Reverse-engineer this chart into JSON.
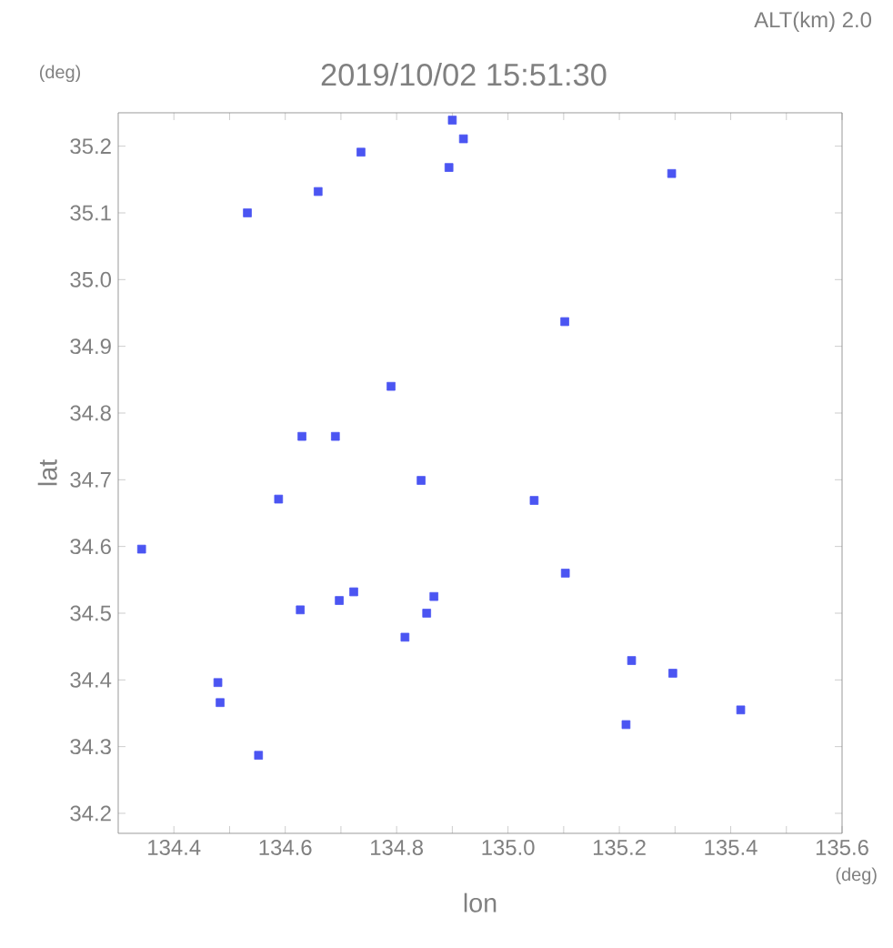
{
  "chart_data": {
    "type": "scatter",
    "title": "2019/10/02 15:51:30",
    "subtitle": "ALT(km) 2.0",
    "xlabel": "lon",
    "ylabel": "lat",
    "annotations": [
      "(deg)",
      "(deg)"
    ],
    "x": [
      134.532,
      134.659,
      134.736,
      134.9,
      134.92,
      134.894,
      135.294,
      135.102,
      135.047,
      135.103,
      135.222,
      135.296,
      135.212,
      135.418,
      134.342,
      134.588,
      134.844,
      134.479,
      134.483,
      134.552,
      134.627,
      134.723,
      134.697,
      134.867,
      134.815,
      134.854,
      134.63,
      134.69,
      134.79
    ],
    "values": [
      35.1,
      35.132,
      35.191,
      35.239,
      35.211,
      35.168,
      35.159,
      34.937,
      34.669,
      34.56,
      34.429,
      34.41,
      34.333,
      34.355,
      34.596,
      34.671,
      34.699,
      34.396,
      34.366,
      34.287,
      34.505,
      34.532,
      34.519,
      34.525,
      34.464,
      34.5,
      34.765,
      34.765,
      34.84
    ],
    "color": "#4b55f2",
    "marker": "square",
    "grid": false,
    "xlim": [
      134.3,
      135.6
    ],
    "ylim": [
      34.17,
      35.25
    ],
    "xticks": [
      134.4,
      {
        "value": 134.5,
        "label": null
      },
      134.6,
      {
        "value": 134.7,
        "label": null
      },
      134.8,
      {
        "value": 134.9,
        "label": null
      },
      {
        "value": 135.0,
        "label": "135.0"
      },
      {
        "value": 135.1,
        "label": null
      },
      135.2,
      {
        "value": 135.3,
        "label": null
      },
      135.4,
      {
        "value": 135.5,
        "label": null
      },
      135.6
    ],
    "yticks": [
      34.2,
      34.3,
      34.4,
      34.5,
      34.6,
      34.7,
      34.8,
      34.9,
      {
        "value": 35.0,
        "label": "35.0"
      },
      35.1,
      35.2
    ]
  }
}
